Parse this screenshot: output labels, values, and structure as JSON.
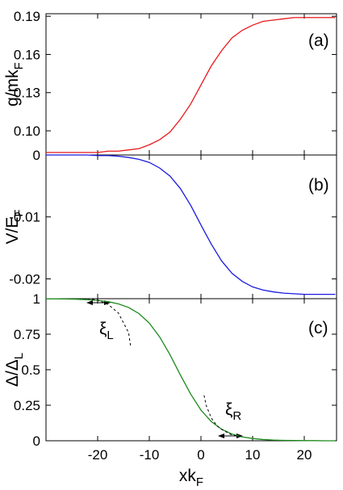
{
  "chart_data": [
    {
      "type": "line",
      "ylabel": [
        "g/mk",
        "F"
      ],
      "annotations": [
        [
          "(a)"
        ]
      ],
      "xlim": [
        -30,
        26.25
      ],
      "xticks": [
        -20,
        -10,
        0,
        10,
        20
      ],
      "ylim": [
        0.081,
        0.192
      ],
      "yticks": [
        {
          "value": 0.1,
          "label": "0.10"
        },
        0.13,
        0.16,
        0.19
      ],
      "x": [
        -30,
        -28,
        -26,
        -24,
        -22,
        -20,
        -18,
        -16,
        -14,
        -12,
        -10,
        -8,
        -6,
        -4,
        -2,
        0,
        2,
        4,
        6,
        8,
        10,
        12,
        14,
        16,
        18,
        20,
        22,
        24,
        26
      ],
      "series": [
        {
          "color": "#e8191c",
          "values": [
            0.083,
            0.083,
            0.083,
            0.083,
            0.083,
            0.083,
            0.084,
            0.084,
            0.085,
            0.086,
            0.089,
            0.093,
            0.099,
            0.109,
            0.121,
            0.136,
            0.151,
            0.163,
            0.173,
            0.179,
            0.183,
            0.186,
            0.187,
            0.188,
            0.189,
            0.189,
            0.189,
            0.189,
            0.189
          ]
        }
      ]
    },
    {
      "type": "line",
      "ylabel": [
        "V/E",
        "F"
      ],
      "annotations": [
        [
          "(b)"
        ]
      ],
      "xlim": [
        -30,
        26.25
      ],
      "xticks": [
        -20,
        -10,
        0,
        10,
        20
      ],
      "ylim": [
        -0.0232,
        0
      ],
      "yticks": [
        0,
        -0.01,
        -0.02
      ],
      "x": [
        -30,
        -28,
        -26,
        -24,
        -22,
        -20,
        -18,
        -16,
        -14,
        -12,
        -10,
        -8,
        -6,
        -4,
        -2,
        0,
        2,
        4,
        6,
        8,
        10,
        12,
        14,
        16,
        18,
        20,
        22,
        24,
        26
      ],
      "series": [
        {
          "color": "#1a1ae0",
          "values": [
            0,
            0,
            0,
            0,
            0,
            -0.0001,
            -0.0001,
            -0.0002,
            -0.0004,
            -0.0007,
            -0.0012,
            -0.0021,
            -0.0034,
            -0.0054,
            -0.0081,
            -0.0113,
            -0.0144,
            -0.0171,
            -0.0191,
            -0.0204,
            -0.0213,
            -0.0218,
            -0.0221,
            -0.0223,
            -0.0224,
            -0.0225,
            -0.0225,
            -0.0225,
            -0.0225
          ]
        }
      ]
    },
    {
      "type": "line",
      "ylabel": [
        "Δ/Δ",
        "L"
      ],
      "xlabel": [
        "xk",
        "F"
      ],
      "annotations": [
        [
          "(c)"
        ],
        [
          "ξ",
          "L"
        ],
        [
          "ξ",
          "R"
        ]
      ],
      "xlim": [
        -30,
        26.25
      ],
      "xticks": [
        -20,
        -10,
        0,
        10,
        20
      ],
      "ylim": [
        0,
        1
      ],
      "yticks": [
        0,
        0.25,
        0.5,
        0.75,
        1
      ],
      "x": [
        -30,
        -28,
        -26,
        -24,
        -22,
        -20,
        -18,
        -16,
        -14,
        -12,
        -10,
        -8,
        -6,
        -4,
        -2,
        0,
        2,
        4,
        6,
        8,
        10,
        12,
        14,
        16,
        18,
        20,
        22,
        24,
        26
      ],
      "series": [
        {
          "color": "#1a8a1a",
          "values": [
            0.999,
            0.999,
            0.998,
            0.996,
            0.993,
            0.988,
            0.979,
            0.964,
            0.938,
            0.895,
            0.828,
            0.731,
            0.606,
            0.464,
            0.329,
            0.216,
            0.135,
            0.081,
            0.047,
            0.027,
            0.016,
            0.009,
            0.005,
            0.003,
            0.002,
            0.001,
            0.001,
            0,
            0
          ]
        },
        {
          "color": "#000000",
          "dash": true,
          "x": [
            -22,
            -20,
            -18,
            -16,
            -14,
            -13.6
          ],
          "values": [
            1.0,
            0.99,
            0.96,
            0.9,
            0.76,
            0.66
          ]
        },
        {
          "color": "#000000",
          "dash": true,
          "x": [
            0.6,
            1,
            2,
            3,
            4,
            5,
            6,
            8
          ],
          "values": [
            0.32,
            0.25,
            0.16,
            0.11,
            0.08,
            0.06,
            0.04,
            0.03
          ]
        }
      ]
    }
  ]
}
